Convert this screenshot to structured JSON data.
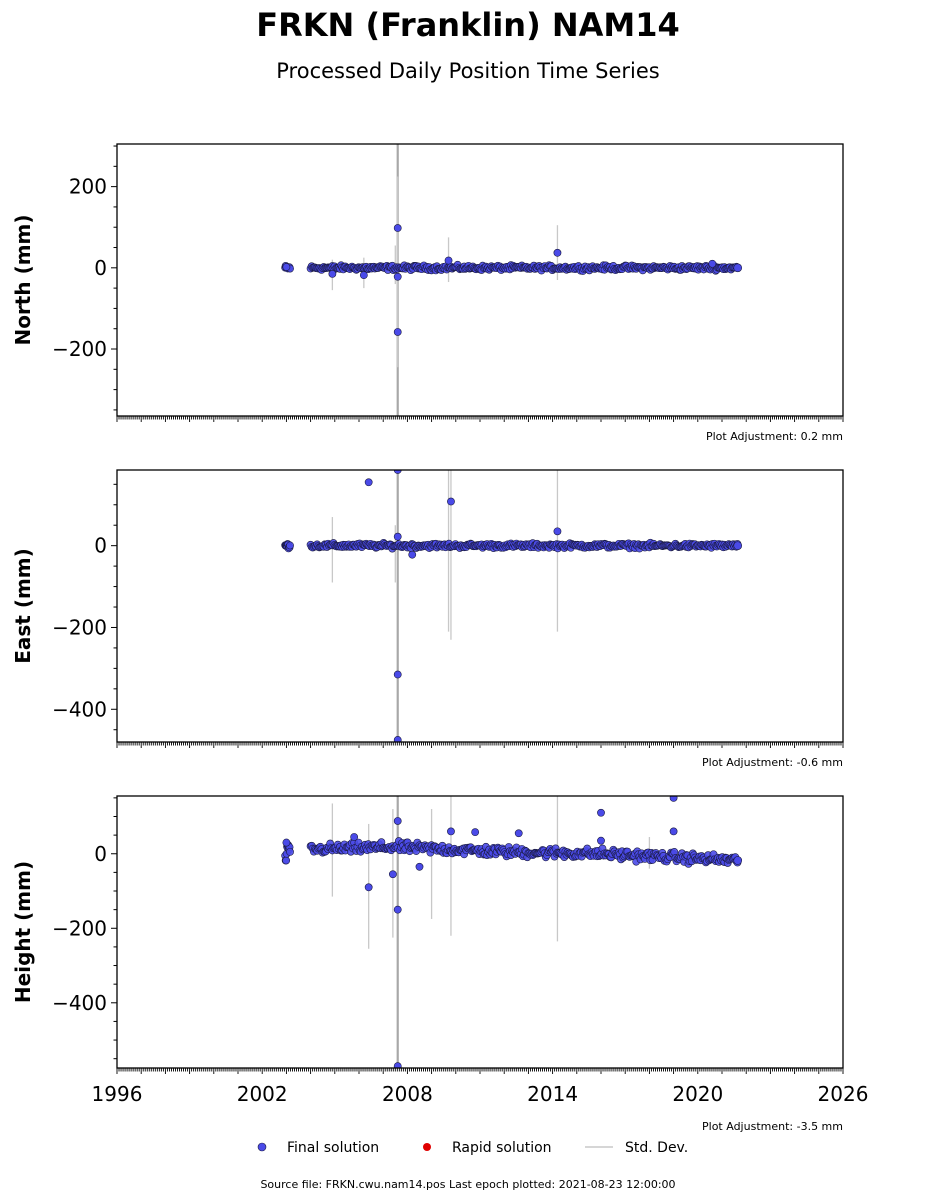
{
  "title": "FRKN (Franklin) NAM14",
  "subtitle": "Processed Daily Position Time Series",
  "colors": {
    "final": "#4a4ae8",
    "final_edge": "#1a1a40",
    "rapid": "#e00000",
    "stddev": "#c8c8c8"
  },
  "legend": {
    "final_label": "Final solution",
    "rapid_label": "Rapid solution",
    "std_label": "Std. Dev."
  },
  "source_text": "Source file: FRKN.cwu.nam14.pos  Last epoch plotted: 2021-08-23 12:00:00",
  "chart_data": [
    {
      "type": "scatter",
      "ylabel": "North (mm)",
      "adjustment": "Plot Adjustment: 0.2 mm",
      "xlim": [
        1996,
        2026
      ],
      "ylim": [
        -365,
        305
      ],
      "yticks": [
        200,
        0,
        -200
      ],
      "ytick_labels": [
        "200",
        "0",
        "−200"
      ],
      "xticks": [],
      "xtick_labels": [],
      "data_span": [
        2003.05,
        2021.65
      ],
      "baseline": [
        [
          2003.0,
          0
        ],
        [
          2021.65,
          0
        ]
      ],
      "scatter_amp": 5,
      "outliers": [
        [
          2003.0,
          2
        ],
        [
          2004.9,
          -15
        ],
        [
          2006.2,
          -18
        ],
        [
          2007.6,
          98
        ],
        [
          2007.6,
          -158
        ],
        [
          2007.6,
          -22
        ],
        [
          2009.7,
          18
        ],
        [
          2014.2,
          37
        ],
        [
          2020.6,
          10
        ]
      ],
      "std_bars": [
        [
          2007.6,
          -365,
          305,
          true
        ],
        [
          2007.6,
          -245,
          225,
          false
        ],
        [
          2007.5,
          -40,
          55,
          false
        ],
        [
          2004.9,
          -55,
          20,
          false
        ],
        [
          2006.2,
          -50,
          25,
          false
        ],
        [
          2009.7,
          -35,
          75,
          false
        ],
        [
          2014.2,
          -30,
          105,
          false
        ]
      ]
    },
    {
      "type": "scatter",
      "ylabel": "East (mm)",
      "adjustment": "Plot Adjustment: -0.6 mm",
      "xlim": [
        1996,
        2026
      ],
      "ylim": [
        -480,
        185
      ],
      "yticks": [
        0,
        -200,
        -400
      ],
      "ytick_labels": [
        "0",
        "−200",
        "−400"
      ],
      "xticks": [],
      "xtick_labels": [],
      "data_span": [
        2003.05,
        2021.65
      ],
      "baseline": [
        [
          2003.0,
          0
        ],
        [
          2021.65,
          0
        ]
      ],
      "scatter_amp": 5,
      "outliers": [
        [
          2006.4,
          155
        ],
        [
          2007.6,
          185
        ],
        [
          2007.6,
          22
        ],
        [
          2007.6,
          -315
        ],
        [
          2007.6,
          -475
        ],
        [
          2009.8,
          108
        ],
        [
          2014.2,
          35
        ],
        [
          2008.2,
          -22
        ]
      ],
      "std_bars": [
        [
          2007.6,
          -480,
          185,
          true
        ],
        [
          2007.5,
          -90,
          50,
          false
        ],
        [
          2004.9,
          -90,
          70,
          false
        ],
        [
          2009.8,
          -230,
          185,
          false
        ],
        [
          2009.7,
          -210,
          185,
          false
        ],
        [
          2014.2,
          -210,
          185,
          false
        ]
      ]
    },
    {
      "type": "scatter",
      "ylabel": "Height (mm)",
      "adjustment": "Plot Adjustment: -3.5 mm",
      "xlim": [
        1996,
        2026
      ],
      "ylim": [
        -575,
        155
      ],
      "yticks": [
        0,
        -200,
        -400
      ],
      "ytick_labels": [
        "0",
        "−200",
        "−400"
      ],
      "xticks": [
        1996,
        2002,
        2008,
        2014,
        2020,
        2026
      ],
      "xtick_labels": [
        "1996",
        "2002",
        "2008",
        "2014",
        "2020",
        "2026"
      ],
      "data_span": [
        2003.05,
        2021.65
      ],
      "baseline": [
        [
          2003.0,
          10
        ],
        [
          2007.5,
          18
        ],
        [
          2012.0,
          5
        ],
        [
          2016.0,
          0
        ],
        [
          2021.65,
          -18
        ]
      ],
      "scatter_amp": 12,
      "outliers": [
        [
          2003.0,
          30
        ],
        [
          2005.8,
          45
        ],
        [
          2006.4,
          -90
        ],
        [
          2007.4,
          -55
        ],
        [
          2007.6,
          88
        ],
        [
          2007.6,
          -150
        ],
        [
          2007.6,
          -570
        ],
        [
          2008.5,
          -35
        ],
        [
          2009.8,
          60
        ],
        [
          2010.8,
          58
        ],
        [
          2012.6,
          55
        ],
        [
          2016.0,
          110
        ],
        [
          2016.0,
          35
        ],
        [
          2019.0,
          150
        ],
        [
          2019.0,
          60
        ]
      ],
      "std_bars": [
        [
          2007.6,
          -575,
          155,
          true
        ],
        [
          2004.9,
          -115,
          135,
          false
        ],
        [
          2006.4,
          -255,
          80,
          false
        ],
        [
          2007.4,
          -225,
          120,
          false
        ],
        [
          2009.0,
          -175,
          120,
          false
        ],
        [
          2009.8,
          -220,
          155,
          false
        ],
        [
          2014.2,
          -235,
          155,
          false
        ],
        [
          2018.0,
          -40,
          45,
          false
        ]
      ]
    }
  ]
}
